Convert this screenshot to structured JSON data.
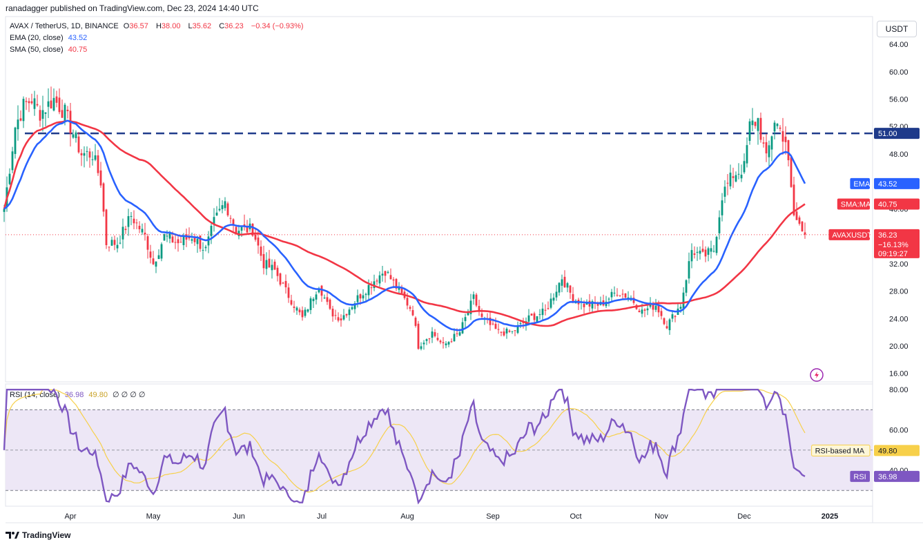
{
  "header": {
    "published": "ranadagger published on TradingView.com, Dec 23, 2024 14:40 UTC"
  },
  "unit": "USDT",
  "footer": {
    "brand": "TradingView"
  },
  "legend": {
    "symbol": "AVAX / TetherUS, 1D, BINANCE",
    "o_label": "O",
    "o": "36.57",
    "h_label": "H",
    "h": "38.00",
    "l_label": "L",
    "l": "35.62",
    "c_label": "C",
    "c": "36.23",
    "change": "−0.34 (−0.93%)",
    "ema_label": "EMA (20, close)",
    "ema": "43.52",
    "sma_label": "SMA (50, close)",
    "sma": "40.75",
    "rsi_label": "RSI (14, close)",
    "rsi": "36.98",
    "rsi_ma": "49.80",
    "rsi_extra": "∅ ∅ ∅ ∅"
  },
  "colors": {
    "up": "#089981",
    "down": "#f23645",
    "ema": "#2962ff",
    "sma": "#f23645",
    "rsi": "#7e57c2",
    "rsi_ma": "#f7d04a",
    "resistance": "#1e3a8a",
    "rsi_band": "#ede7f6"
  },
  "badges": {
    "resistance": "51.00",
    "ema_name": "EMA",
    "ema_value": "43.52",
    "sma_name": "SMA:MA",
    "sma_value": "40.75",
    "price_name": "AVAXUSDT",
    "price_value": "36.23",
    "price_change": "−16.13%",
    "price_timer": "09:19:27",
    "rsi_ma_name": "RSI-based MA",
    "rsi_ma_value": "49.80",
    "rsi_name": "RSI",
    "rsi_value": "36.98"
  },
  "chart_data": {
    "type": "candlestick",
    "title": "AVAX / TetherUS, 1D, BINANCE",
    "x_labels": [
      "Apr",
      "May",
      "Jun",
      "Jul",
      "Aug",
      "Sep",
      "Oct",
      "Nov",
      "Dec",
      "2025"
    ],
    "x_dates": [
      "2024-04-01",
      "2024-05-01",
      "2024-06-01",
      "2024-07-01",
      "2024-08-01",
      "2024-09-01",
      "2024-10-01",
      "2024-11-01",
      "2024-12-01",
      "2025-01-01"
    ],
    "y_ticks": [
      16,
      20,
      24,
      28,
      32,
      36,
      40,
      44,
      48,
      52,
      56,
      60,
      64
    ],
    "y_tick_labels": [
      "16.00",
      "20.00",
      "24.00",
      "28.00",
      "32.00",
      "36.00",
      "40.00",
      "44.00",
      "48.00",
      "52.00",
      "56.00",
      "60.00",
      "64.00"
    ],
    "ylim": [
      14,
      66
    ],
    "resistance_level": 51.0,
    "close_series": {
      "start_date": "2024-03-08",
      "end_date": "2024-12-23",
      "anchors": [
        [
          "2024-03-08",
          40
        ],
        [
          "2024-03-12",
          52
        ],
        [
          "2024-03-15",
          55
        ],
        [
          "2024-03-18",
          56
        ],
        [
          "2024-03-21",
          54
        ],
        [
          "2024-03-26",
          56
        ],
        [
          "2024-03-30",
          54
        ],
        [
          "2024-04-05",
          48
        ],
        [
          "2024-04-09",
          48
        ],
        [
          "2024-04-12",
          44
        ],
        [
          "2024-04-14",
          35
        ],
        [
          "2024-04-18",
          35
        ],
        [
          "2024-04-23",
          39
        ],
        [
          "2024-04-28",
          36
        ],
        [
          "2024-05-01",
          32
        ],
        [
          "2024-05-05",
          36
        ],
        [
          "2024-05-10",
          35
        ],
        [
          "2024-05-15",
          36
        ],
        [
          "2024-05-20",
          34
        ],
        [
          "2024-05-23",
          38
        ],
        [
          "2024-05-27",
          41
        ],
        [
          "2024-05-31",
          37
        ],
        [
          "2024-06-06",
          37
        ],
        [
          "2024-06-10",
          32
        ],
        [
          "2024-06-14",
          31
        ],
        [
          "2024-06-18",
          28
        ],
        [
          "2024-06-24",
          24
        ],
        [
          "2024-06-30",
          29
        ],
        [
          "2024-07-04",
          25
        ],
        [
          "2024-07-08",
          24
        ],
        [
          "2024-07-14",
          27
        ],
        [
          "2024-07-21",
          30
        ],
        [
          "2024-07-24",
          31
        ],
        [
          "2024-07-29",
          28
        ],
        [
          "2024-08-03",
          25
        ],
        [
          "2024-08-05",
          20
        ],
        [
          "2024-08-10",
          22
        ],
        [
          "2024-08-14",
          20
        ],
        [
          "2024-08-20",
          22
        ],
        [
          "2024-08-25",
          27
        ],
        [
          "2024-08-28",
          24
        ],
        [
          "2024-09-03",
          22
        ],
        [
          "2024-09-08",
          22
        ],
        [
          "2024-09-14",
          24
        ],
        [
          "2024-09-20",
          25
        ],
        [
          "2024-09-26",
          30
        ],
        [
          "2024-09-30",
          27
        ],
        [
          "2024-10-04",
          26
        ],
        [
          "2024-10-10",
          26
        ],
        [
          "2024-10-16",
          28
        ],
        [
          "2024-10-21",
          27
        ],
        [
          "2024-10-25",
          25
        ],
        [
          "2024-10-30",
          26
        ],
        [
          "2024-11-03",
          23
        ],
        [
          "2024-11-08",
          26
        ],
        [
          "2024-11-12",
          34
        ],
        [
          "2024-11-16",
          33
        ],
        [
          "2024-11-20",
          34
        ],
        [
          "2024-11-23",
          42
        ],
        [
          "2024-11-27",
          45
        ],
        [
          "2024-12-01",
          46
        ],
        [
          "2024-12-03",
          52
        ],
        [
          "2024-12-06",
          53
        ],
        [
          "2024-12-09",
          47
        ],
        [
          "2024-12-12",
          53
        ],
        [
          "2024-12-16",
          50
        ],
        [
          "2024-12-19",
          39
        ],
        [
          "2024-12-23",
          36.23
        ]
      ]
    },
    "series": [
      {
        "name": "EMA (20, close)",
        "last_value": 43.52
      },
      {
        "name": "SMA (50, close)",
        "last_value": 40.75
      }
    ],
    "last_candle": {
      "open": 36.57,
      "high": 38.0,
      "low": 35.62,
      "close": 36.23
    },
    "rsi_panel": {
      "y_ticks": [
        40,
        60,
        80
      ],
      "y_tick_labels": [
        "40.00",
        "60.00",
        "80.00"
      ],
      "ylim": [
        22,
        82
      ],
      "band": [
        30,
        70
      ],
      "rsi_last": 36.98,
      "rsi_ma_last": 49.8
    }
  }
}
